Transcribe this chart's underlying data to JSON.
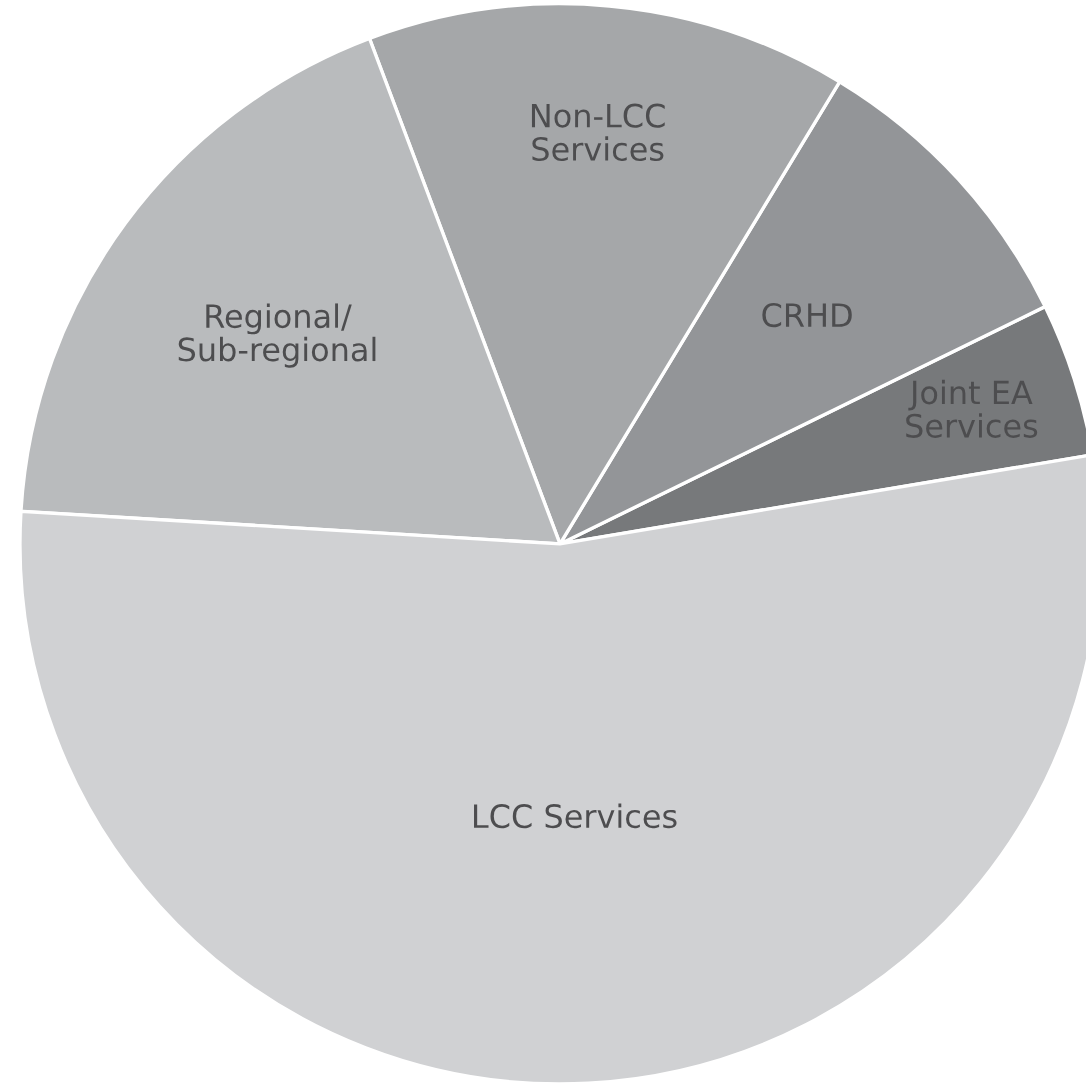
{
  "chart_data": {
    "type": "pie",
    "categories": [
      "Joint EA\nServices",
      "CRHD",
      "Non-LCC\nServices",
      "Regional/\nSub-regional",
      "LCC Services"
    ],
    "values": [
      4.6,
      9.1,
      14.4,
      18.3,
      53.6
    ],
    "colors": [
      "#77797b",
      "#939598",
      "#a5a7a9",
      "#b9bbbd",
      "#d0d1d3"
    ]
  }
}
